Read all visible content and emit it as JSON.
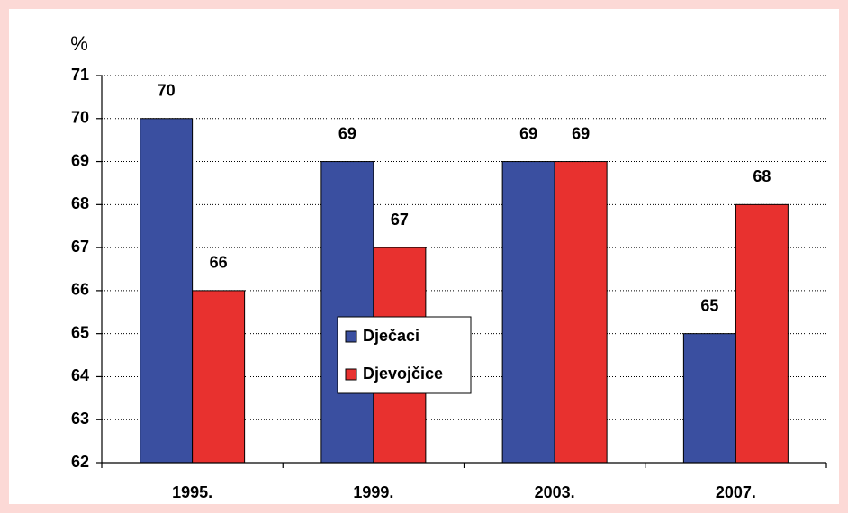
{
  "chart_data": {
    "type": "bar",
    "y_label": "%",
    "categories": [
      "1995.",
      "1999.",
      "2003.",
      "2007."
    ],
    "series": [
      {
        "name": "Dječaci",
        "color": "#3a4fa0",
        "values": [
          70,
          69,
          69,
          65
        ]
      },
      {
        "name": "Djevojčice",
        "color": "#e8312f",
        "values": [
          66,
          67,
          69,
          68
        ]
      }
    ],
    "ylim": [
      62,
      71
    ],
    "yticks": [
      62,
      63,
      64,
      65,
      66,
      67,
      68,
      69,
      70,
      71
    ],
    "grid": true,
    "legend": "center"
  }
}
